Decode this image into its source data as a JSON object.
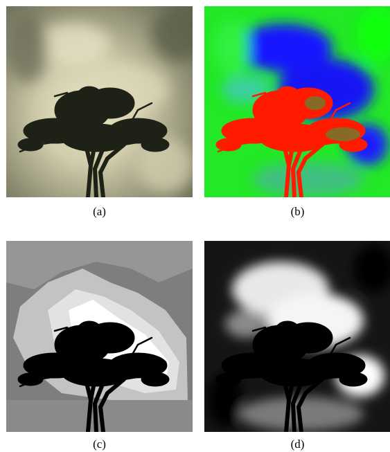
{
  "panels": [
    {
      "id": "a",
      "caption": "(a)",
      "style": "photo",
      "sky": "#b9b79c",
      "tree": "#1e2216"
    },
    {
      "id": "b",
      "caption": "(b)",
      "style": "pseudocolor",
      "low": "#0000ff",
      "mid": "#00ff00",
      "high": "#ff0000"
    },
    {
      "id": "c",
      "caption": "(c)",
      "style": "quantized-gray",
      "dark": "#787878",
      "light": "#ffffff",
      "tree": "#000000"
    },
    {
      "id": "d",
      "caption": "(d)",
      "style": "saliency-gray",
      "dark": "#000000",
      "light": "#ffffff",
      "tree": "#000000"
    }
  ]
}
